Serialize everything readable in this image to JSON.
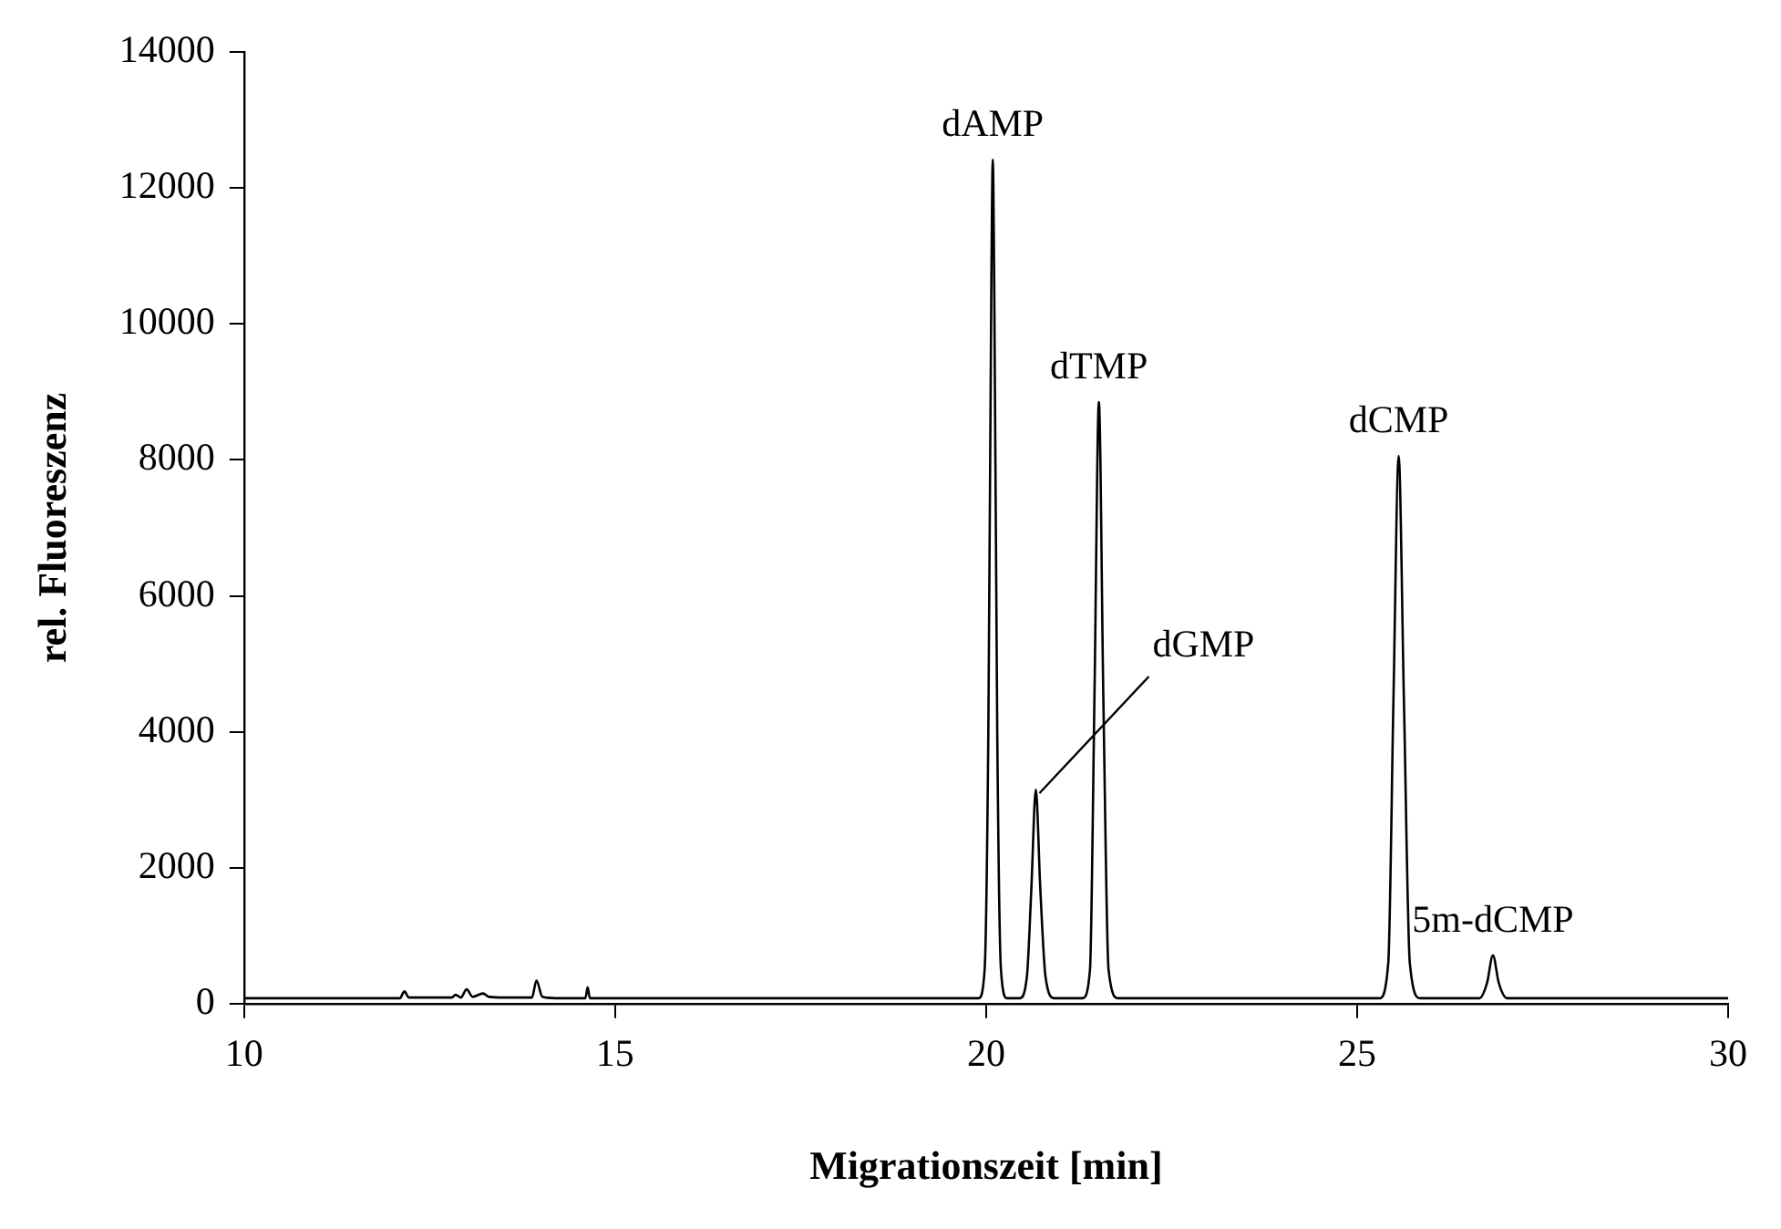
{
  "chart_data": {
    "type": "line",
    "xlabel": "Migrationszeit [min]",
    "ylabel": "rel. Fluoreszenz",
    "series": [
      {
        "color": "#000000",
        "x": [
          10,
          12.1,
          12.16,
          12.22,
          12.8,
          12.85,
          12.92,
          13.0,
          13.08,
          13.22,
          13.3,
          13.5,
          13.88,
          13.94,
          14.02,
          14.2,
          14.6,
          14.63,
          14.66,
          19.9,
          19.98,
          20.03,
          20.07,
          20.09,
          20.11,
          20.15,
          20.2,
          20.28,
          20.45,
          20.55,
          20.61,
          20.67,
          20.73,
          20.8,
          20.92,
          21.3,
          21.4,
          21.46,
          21.52,
          21.58,
          21.65,
          21.78,
          25.3,
          25.42,
          25.49,
          25.56,
          25.63,
          25.71,
          25.85,
          26.65,
          26.75,
          26.83,
          26.91,
          27.02,
          30
        ],
        "values": [
          80,
          80,
          180,
          90,
          90,
          130,
          90,
          210,
          100,
          150,
          100,
          90,
          90,
          340,
          100,
          80,
          80,
          240,
          80,
          80,
          500,
          4000,
          10500,
          12420,
          10500,
          4000,
          500,
          80,
          80,
          400,
          1700,
          3150,
          1700,
          400,
          80,
          80,
          500,
          4500,
          8850,
          4500,
          500,
          80,
          80,
          600,
          4500,
          8060,
          4500,
          600,
          80,
          80,
          300,
          710,
          300,
          80,
          80
        ]
      }
    ],
    "xlim": [
      10,
      30
    ],
    "xticks": [
      10,
      15,
      20,
      25,
      30
    ],
    "ylim": [
      0,
      14000
    ],
    "yticks": [
      0,
      2000,
      4000,
      6000,
      8000,
      10000,
      12000,
      14000
    ],
    "grid": false,
    "legend": false,
    "marker": "none",
    "line_style": "solid",
    "annotations": [
      {
        "text": "dAMP",
        "x": 20.09,
        "y": 12420
      },
      {
        "text": "dGMP",
        "x": 20.67,
        "y": 3150
      },
      {
        "text": "dTMP",
        "x": 21.52,
        "y": 8850
      },
      {
        "text": "dCMP",
        "x": 25.56,
        "y": 8060
      },
      {
        "text": "5m-dCMP",
        "x": 26.83,
        "y": 710
      }
    ]
  }
}
